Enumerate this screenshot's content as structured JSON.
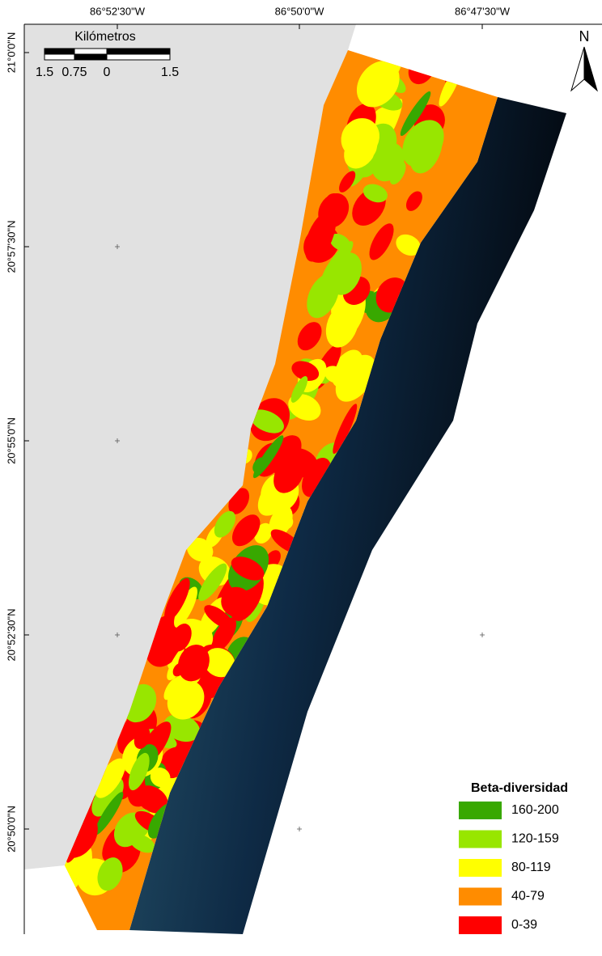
{
  "map": {
    "longitude_labels": [
      "86°52'30\"W",
      "86°50'0\"W",
      "86°47'30\"W"
    ],
    "latitude_labels": [
      "21°0'0\"N",
      "20°57'30\"N",
      "20°55'0\"N",
      "20°52'30\"N",
      "20°50'0\"N"
    ],
    "scale_bar": {
      "title": "Kilómetros",
      "labels": [
        "1.5",
        "0.75",
        "0",
        "1.5"
      ]
    },
    "north_label": "N",
    "legend": {
      "title": "Beta-diversidad",
      "items": [
        {
          "label": "160-200",
          "color": "#38a800"
        },
        {
          "label": "120-159",
          "color": "#98e600"
        },
        {
          "label": "80-119",
          "color": "#ffff00"
        },
        {
          "label": "40-79",
          "color": "#ff8c00"
        },
        {
          "label": "0-39",
          "color": "#ff0000"
        }
      ]
    }
  }
}
